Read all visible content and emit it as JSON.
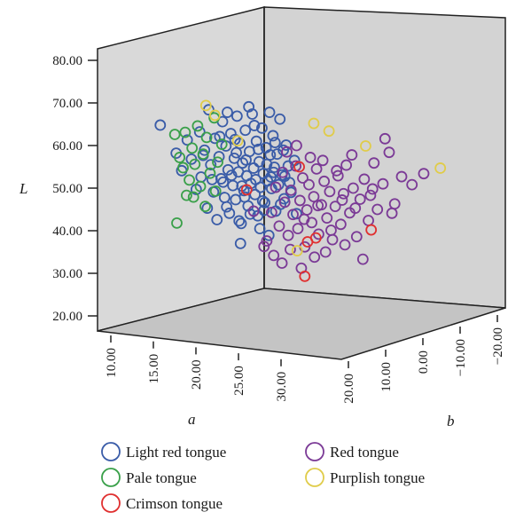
{
  "chart_data": {
    "type": "scatter",
    "projection": "3d",
    "axes": {
      "L": {
        "label": "L",
        "range": [
          20,
          85
        ],
        "ticks": [
          "20.00",
          "30.00",
          "40.00",
          "50.00",
          "60.00",
          "70.00",
          "80.00"
        ]
      },
      "a": {
        "label": "a",
        "range": [
          7,
          35
        ],
        "ticks": [
          "10.00",
          "15.00",
          "20.00",
          "25.00",
          "30.00"
        ]
      },
      "b": {
        "label": "b",
        "range": [
          -25,
          25
        ],
        "ticks": [
          "20.00",
          "10.00",
          "0.00",
          "−10.00",
          "−20.00"
        ]
      }
    },
    "legend": {
      "placement": "bottom",
      "entries": [
        {
          "label": "Light red tongue",
          "color": "#3a5ca8"
        },
        {
          "label": "Red tongue",
          "color": "#7b3a96"
        },
        {
          "label": "Pale tongue",
          "color": "#3aa04a"
        },
        {
          "label": "Purplish tongue",
          "color": "#e0cc4a"
        },
        {
          "label": "Crimson tongue",
          "color": "#e03030"
        }
      ]
    },
    "series": [
      {
        "name": "Light red tongue",
        "color": "#3a5ca8",
        "points": [
          [
            15.1,
            64.8
          ],
          [
            17.4,
            58.2
          ],
          [
            18.2,
            54.1
          ],
          [
            19.0,
            61.3
          ],
          [
            19.6,
            56.8
          ],
          [
            20.3,
            49.7
          ],
          [
            20.8,
            63.2
          ],
          [
            21.0,
            52.6
          ],
          [
            21.5,
            58.9
          ],
          [
            21.9,
            45.3
          ],
          [
            22.1,
            68.4
          ],
          [
            22.4,
            55.5
          ],
          [
            22.8,
            49.1
          ],
          [
            23.0,
            61.7
          ],
          [
            23.3,
            42.6
          ],
          [
            23.6,
            57.4
          ],
          [
            23.9,
            52.2
          ],
          [
            24.1,
            65.6
          ],
          [
            24.4,
            47.8
          ],
          [
            24.6,
            59.9
          ],
          [
            24.9,
            54.3
          ],
          [
            25.1,
            44.1
          ],
          [
            25.3,
            62.8
          ],
          [
            25.6,
            50.6
          ],
          [
            25.8,
            57.0
          ],
          [
            26.0,
            47.3
          ],
          [
            26.2,
            66.9
          ],
          [
            26.4,
            53.8
          ],
          [
            26.6,
            60.5
          ],
          [
            26.8,
            41.7
          ],
          [
            27.0,
            55.9
          ],
          [
            27.2,
            49.4
          ],
          [
            27.4,
            63.6
          ],
          [
            27.6,
            52.9
          ],
          [
            27.8,
            45.8
          ],
          [
            28.0,
            58.6
          ],
          [
            28.2,
            51.1
          ],
          [
            28.4,
            67.4
          ],
          [
            28.6,
            54.7
          ],
          [
            28.8,
            48.5
          ],
          [
            29.0,
            61.0
          ],
          [
            29.2,
            43.5
          ],
          [
            29.4,
            56.2
          ],
          [
            29.6,
            50.2
          ],
          [
            29.8,
            64.1
          ],
          [
            30.0,
            53.4
          ],
          [
            30.2,
            46.6
          ],
          [
            30.4,
            59.5
          ],
          [
            30.6,
            51.7
          ],
          [
            30.8,
            38.9
          ],
          [
            31.0,
            57.8
          ],
          [
            31.2,
            49.9
          ],
          [
            31.4,
            62.3
          ],
          [
            31.6,
            54.9
          ],
          [
            31.8,
            44.6
          ],
          [
            32.0,
            58.0
          ],
          [
            32.2,
            50.8
          ],
          [
            32.4,
            66.2
          ],
          [
            32.7,
            53.1
          ],
          [
            33.0,
            47.5
          ],
          [
            33.3,
            60.1
          ],
          [
            33.6,
            55.2
          ],
          [
            34.0,
            49.0
          ],
          [
            34.5,
            56.5
          ],
          [
            23.7,
            62.1
          ],
          [
            24.7,
            45.6
          ],
          [
            25.4,
            53.0
          ],
          [
            26.1,
            58.3
          ],
          [
            26.9,
            50.5
          ],
          [
            27.5,
            56.6
          ],
          [
            28.1,
            43.9
          ],
          [
            28.9,
            52.0
          ],
          [
            29.3,
            59.1
          ],
          [
            29.9,
            47.0
          ],
          [
            30.5,
            55.6
          ],
          [
            31.1,
            52.6
          ],
          [
            31.7,
            60.7
          ],
          [
            32.5,
            46.2
          ],
          [
            33.1,
            52.8
          ],
          [
            24.2,
            51.4
          ],
          [
            25.9,
            61.4
          ],
          [
            27.3,
            47.9
          ],
          [
            28.7,
            64.7
          ],
          [
            30.1,
            44.8
          ],
          [
            31.5,
            53.7
          ],
          [
            32.9,
            58.9
          ],
          [
            33.8,
            51.3
          ],
          [
            22.6,
            52.0
          ],
          [
            26.5,
            42.3
          ],
          [
            29.5,
            40.5
          ],
          [
            30.9,
            67.8
          ],
          [
            27.9,
            69.1
          ],
          [
            24.8,
            67.8
          ],
          [
            21.3,
            57.7
          ],
          [
            34.8,
            44.0
          ],
          [
            26.7,
            37.0
          ]
        ]
      },
      {
        "name": "Red tongue",
        "color": "#7b3a96",
        "points": [
          [
            30.5,
            37.6
          ],
          [
            31.2,
            44.3
          ],
          [
            31.8,
            50.2
          ],
          [
            32.3,
            41.1
          ],
          [
            32.8,
            53.7
          ],
          [
            33.1,
            46.7
          ],
          [
            33.6,
            38.9
          ],
          [
            34.0,
            49.5
          ],
          [
            34.3,
            43.8
          ],
          [
            34.7,
            55.2
          ],
          [
            35.0,
            40.5
          ],
          [
            35.3,
            47.1
          ],
          [
            35.7,
            52.4
          ],
          [
            36.0,
            36.2
          ],
          [
            36.3,
            44.9
          ],
          [
            36.6,
            50.8
          ],
          [
            37.0,
            41.9
          ],
          [
            37.3,
            48.0
          ],
          [
            37.7,
            54.5
          ],
          [
            38.0,
            39.2
          ],
          [
            38.4,
            46.1
          ],
          [
            38.8,
            51.6
          ],
          [
            39.2,
            43.0
          ],
          [
            39.6,
            49.2
          ],
          [
            40.0,
            37.9
          ],
          [
            40.4,
            45.7
          ],
          [
            40.8,
            52.9
          ],
          [
            41.2,
            41.5
          ],
          [
            41.6,
            48.7
          ],
          [
            42.0,
            55.4
          ],
          [
            42.5,
            44.2
          ],
          [
            43.0,
            50.0
          ],
          [
            43.5,
            38.6
          ],
          [
            44.0,
            47.4
          ],
          [
            44.6,
            52.1
          ],
          [
            45.2,
            42.4
          ],
          [
            45.8,
            49.8
          ],
          [
            46.5,
            45.0
          ],
          [
            47.3,
            51.0
          ],
          [
            48.2,
            58.4
          ],
          [
            49.0,
            46.3
          ],
          [
            50.0,
            52.7
          ],
          [
            31.5,
            34.2
          ],
          [
            32.7,
            32.4
          ],
          [
            33.9,
            35.6
          ],
          [
            35.5,
            31.2
          ],
          [
            37.4,
            33.8
          ],
          [
            39.0,
            35.0
          ],
          [
            41.8,
            36.7
          ],
          [
            44.4,
            33.3
          ],
          [
            36.8,
            57.2
          ],
          [
            34.8,
            60.0
          ],
          [
            38.6,
            56.5
          ],
          [
            40.6,
            54.1
          ],
          [
            42.8,
            57.8
          ],
          [
            46.0,
            55.9
          ],
          [
            51.5,
            50.8
          ],
          [
            53.2,
            53.4
          ],
          [
            47.6,
            61.6
          ],
          [
            33.4,
            58.5
          ],
          [
            35.9,
            42.7
          ],
          [
            39.8,
            40.1
          ],
          [
            43.3,
            45.3
          ],
          [
            37.9,
            45.9
          ],
          [
            41.4,
            47.2
          ],
          [
            45.5,
            48.3
          ],
          [
            48.6,
            44.1
          ],
          [
            30.1,
            36.3
          ],
          [
            28.6,
            44.6
          ]
        ]
      },
      {
        "name": "Pale tongue",
        "color": "#3aa04a",
        "points": [
          [
            17.2,
            62.6
          ],
          [
            17.9,
            57.2
          ],
          [
            18.4,
            54.8
          ],
          [
            18.7,
            63.1
          ],
          [
            19.3,
            51.9
          ],
          [
            19.7,
            59.4
          ],
          [
            20.1,
            55.6
          ],
          [
            20.5,
            64.6
          ],
          [
            20.9,
            50.4
          ],
          [
            21.3,
            58.0
          ],
          [
            21.8,
            61.9
          ],
          [
            22.3,
            53.5
          ],
          [
            22.9,
            66.5
          ],
          [
            23.4,
            56.1
          ],
          [
            24.0,
            60.3
          ],
          [
            17.5,
            41.8
          ],
          [
            19.9,
            47.9
          ],
          [
            21.6,
            45.7
          ],
          [
            18.9,
            48.3
          ],
          [
            23.1,
            49.3
          ]
        ]
      },
      {
        "name": "Purplish tongue",
        "color": "#e0cc4a",
        "points": [
          [
            21.7,
            69.4
          ],
          [
            23.0,
            67.1
          ],
          [
            37.3,
            65.2
          ],
          [
            39.5,
            63.4
          ],
          [
            44.8,
            59.9
          ],
          [
            55.6,
            54.7
          ],
          [
            34.9,
            35.3
          ],
          [
            26.3,
            61.1
          ]
        ]
      },
      {
        "name": "Crimson tongue",
        "color": "#e03030",
        "points": [
          [
            36.0,
            29.3
          ],
          [
            36.4,
            37.4
          ],
          [
            37.6,
            38.3
          ],
          [
            45.6,
            40.2
          ],
          [
            35.2,
            55.0
          ],
          [
            27.6,
            49.6
          ]
        ]
      }
    ]
  }
}
